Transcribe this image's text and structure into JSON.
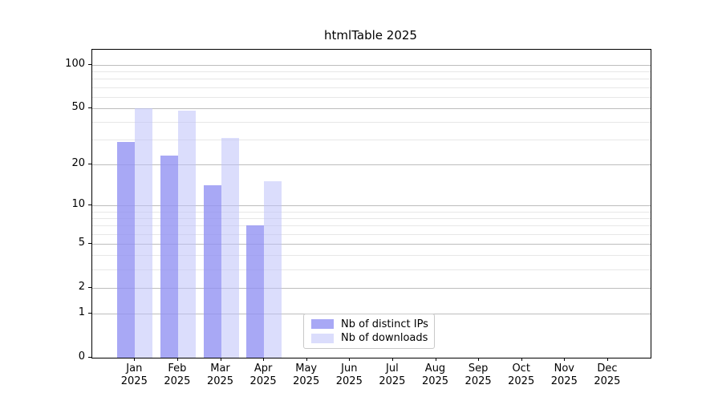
{
  "chart_data": {
    "type": "bar",
    "title": "htmlTable 2025",
    "categories": [
      "Jan",
      "Feb",
      "Mar",
      "Apr",
      "May",
      "Jun",
      "Jul",
      "Aug",
      "Sep",
      "Oct",
      "Nov",
      "Dec"
    ],
    "x_tick_sublabel": "2025",
    "series": [
      {
        "name": "Nb of distinct IPs",
        "color": "rgba(146,146,243,0.8)",
        "color_flat": "#a8a8f4",
        "values": [
          29,
          23,
          14,
          7,
          null,
          null,
          null,
          null,
          null,
          null,
          null,
          null
        ]
      },
      {
        "name": "Nb of downloads",
        "color": "rgba(189,193,249,0.55)",
        "color_flat": "#dbddfa",
        "values": [
          50,
          48,
          31,
          15,
          null,
          null,
          null,
          null,
          null,
          null,
          null,
          null
        ]
      }
    ],
    "yscale": "log1p",
    "ylim": [
      0,
      127
    ],
    "y_major_ticks": [
      0,
      1,
      2,
      5,
      10,
      20,
      50,
      100
    ],
    "y_minor_ticks": [
      3,
      4,
      6,
      7,
      8,
      9,
      30,
      40,
      60,
      70,
      80,
      90
    ],
    "grid": true,
    "legend_position": "bottom-center"
  },
  "colors": {
    "major_grid": "#bdbdbd",
    "minor_grid": "#e7e7e7",
    "spine": "#000000",
    "background": "#ffffff"
  }
}
